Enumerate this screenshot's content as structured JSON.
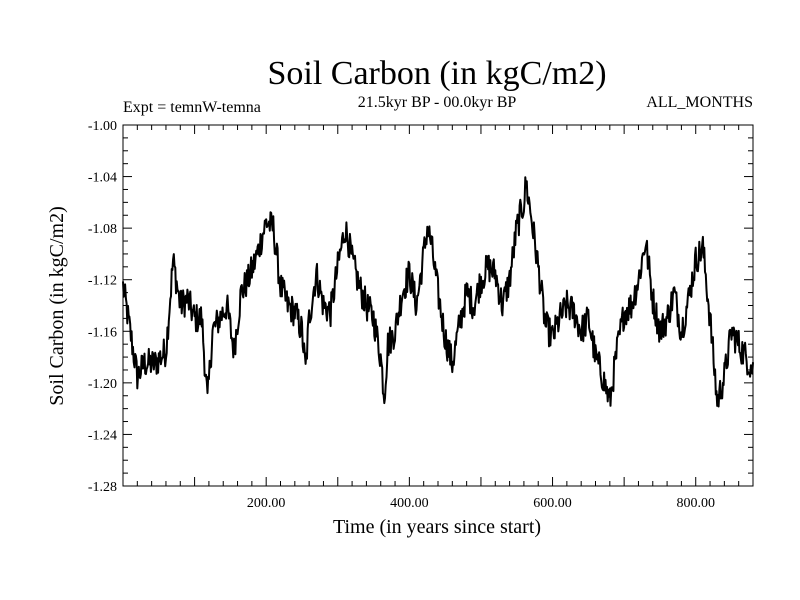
{
  "chart_data": {
    "type": "line",
    "title": "Soil Carbon (in kgC/m2)",
    "subtitle": "21.5kyr BP - 00.0kyr BP",
    "experiment_label": "Expt = temnW-temna",
    "period_label": "ALL_MONTHS",
    "xlabel": "Time (in years since start)",
    "ylabel": "Soil Carbon (in kgC/m2)",
    "xlim": [
      0,
      880
    ],
    "ylim": [
      -1.28,
      -1.0
    ],
    "xticks": [
      200,
      400,
      600,
      800
    ],
    "xtick_labels": [
      "200.00",
      "400.00",
      "600.00",
      "800.00"
    ],
    "yticks": [
      -1.0,
      -1.04,
      -1.08,
      -1.12,
      -1.16,
      -1.2,
      -1.24,
      -1.28
    ],
    "ytick_labels": [
      "-1.00",
      "-1.04",
      "-1.08",
      "-1.12",
      "-1.16",
      "-1.20",
      "-1.24",
      "-1.28"
    ],
    "grid": false,
    "series": [
      {
        "name": "Soil Carbon",
        "color": "#000000",
        "x": [
          0,
          10,
          20,
          30,
          45,
          60,
          70,
          80,
          90,
          100,
          110,
          118,
          125,
          135,
          145,
          155,
          165,
          175,
          185,
          195,
          200,
          210,
          220,
          230,
          240,
          250,
          255,
          260,
          270,
          280,
          290,
          300,
          310,
          315,
          320,
          330,
          340,
          350,
          360,
          365,
          370,
          380,
          390,
          400,
          410,
          420,
          425,
          430,
          440,
          450,
          460,
          470,
          480,
          490,
          500,
          510,
          520,
          530,
          540,
          550,
          560,
          563,
          570,
          580,
          590,
          600,
          610,
          620,
          630,
          640,
          650,
          660,
          670,
          680,
          690,
          700,
          710,
          720,
          730,
          740,
          750,
          760,
          770,
          780,
          790,
          800,
          810,
          820,
          830,
          840,
          850,
          860,
          870,
          880
        ],
        "values": [
          -1.125,
          -1.16,
          -1.195,
          -1.185,
          -1.185,
          -1.175,
          -1.105,
          -1.14,
          -1.135,
          -1.15,
          -1.15,
          -1.215,
          -1.16,
          -1.15,
          -1.14,
          -1.175,
          -1.13,
          -1.12,
          -1.105,
          -1.085,
          -1.075,
          -1.08,
          -1.125,
          -1.14,
          -1.145,
          -1.16,
          -1.19,
          -1.15,
          -1.115,
          -1.14,
          -1.145,
          -1.11,
          -1.08,
          -1.09,
          -1.105,
          -1.125,
          -1.14,
          -1.15,
          -1.18,
          -1.21,
          -1.17,
          -1.16,
          -1.13,
          -1.115,
          -1.14,
          -1.1,
          -1.08,
          -1.09,
          -1.13,
          -1.165,
          -1.185,
          -1.155,
          -1.13,
          -1.14,
          -1.12,
          -1.11,
          -1.115,
          -1.14,
          -1.12,
          -1.08,
          -1.06,
          -1.045,
          -1.07,
          -1.11,
          -1.155,
          -1.165,
          -1.15,
          -1.14,
          -1.145,
          -1.16,
          -1.15,
          -1.18,
          -1.195,
          -1.215,
          -1.175,
          -1.145,
          -1.14,
          -1.12,
          -1.09,
          -1.135,
          -1.16,
          -1.15,
          -1.13,
          -1.16,
          -1.135,
          -1.105,
          -1.095,
          -1.15,
          -1.215,
          -1.195,
          -1.16,
          -1.17,
          -1.18,
          -1.19
        ],
        "noise_amplitude": 0.012
      }
    ]
  }
}
